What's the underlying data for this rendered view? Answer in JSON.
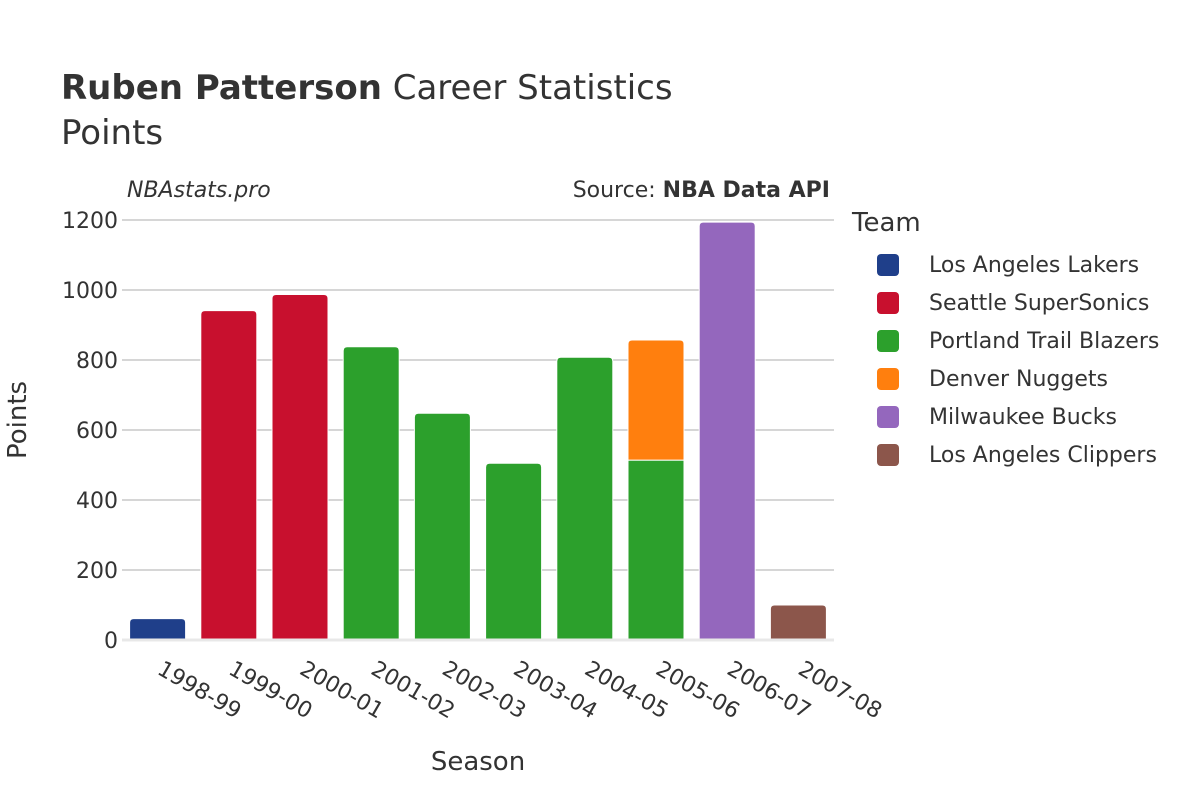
{
  "header": {
    "player_name": "Ruben Patterson",
    "title_rest": "Career Statistics",
    "subtitle": "Points"
  },
  "watermark": "NBAstats.pro",
  "source": {
    "prefix": "Source: ",
    "name": "NBA Data API"
  },
  "legend": {
    "title": "Team",
    "items": [
      {
        "label": "Los Angeles Lakers",
        "color": "#1f3f8a"
      },
      {
        "label": "Seattle SuperSonics",
        "color": "#c8102e"
      },
      {
        "label": "Portland Trail Blazers",
        "color": "#2ca02c"
      },
      {
        "label": "Denver Nuggets",
        "color": "#ff7f0e"
      },
      {
        "label": "Milwaukee Bucks",
        "color": "#9467bd"
      },
      {
        "label": "Los Angeles Clippers",
        "color": "#8c564b"
      }
    ]
  },
  "chart_data": {
    "type": "bar",
    "stacked": true,
    "xlabel": "Season",
    "ylabel": "Points",
    "ylim": [
      0,
      1200
    ],
    "yticks": [
      0,
      200,
      400,
      600,
      800,
      1000,
      1200
    ],
    "grid": true,
    "legend_position": "right",
    "categories": [
      "1998-99",
      "1999-00",
      "2000-01",
      "2001-02",
      "2002-03",
      "2003-04",
      "2004-05",
      "2005-06",
      "2006-07",
      "2007-08"
    ],
    "series": [
      {
        "name": "Los Angeles Lakers",
        "color": "#1f3f8a",
        "values": [
          61,
          0,
          0,
          0,
          0,
          0,
          0,
          0,
          0,
          0
        ]
      },
      {
        "name": "Seattle SuperSonics",
        "color": "#c8102e",
        "values": [
          0,
          941,
          987,
          0,
          0,
          0,
          0,
          0,
          0,
          0
        ]
      },
      {
        "name": "Portland Trail Blazers",
        "color": "#2ca02c",
        "values": [
          0,
          0,
          0,
          838,
          648,
          505,
          808,
          514,
          0,
          0
        ]
      },
      {
        "name": "Denver Nuggets",
        "color": "#ff7f0e",
        "values": [
          0,
          0,
          0,
          0,
          0,
          0,
          0,
          343,
          0,
          0
        ]
      },
      {
        "name": "Milwaukee Bucks",
        "color": "#9467bd",
        "values": [
          0,
          0,
          0,
          0,
          0,
          0,
          0,
          0,
          1194,
          0
        ]
      },
      {
        "name": "Los Angeles Clippers",
        "color": "#8c564b",
        "values": [
          0,
          0,
          0,
          0,
          0,
          0,
          0,
          0,
          0,
          100
        ]
      }
    ]
  }
}
